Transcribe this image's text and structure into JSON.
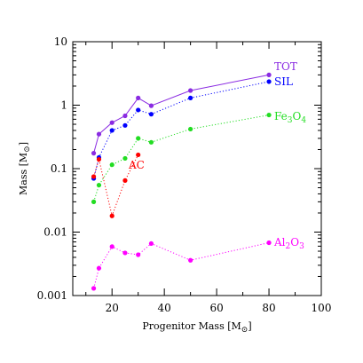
{
  "chart_data": {
    "type": "line",
    "title": "",
    "xlabel": "Progenitor Mass [M",
    "xlabel_unit_symbol": "⊙",
    "xlabel_close": "]",
    "ylabel": "Mass [M",
    "ylabel_unit_symbol": "⊙",
    "ylabel_close": "]",
    "xlim": [
      5,
      100
    ],
    "ylim": [
      0.001,
      10
    ],
    "yscale": "log",
    "grid": false,
    "x_ticks": [
      20,
      40,
      60,
      80,
      100
    ],
    "x_tick_labels": [
      "20",
      "40",
      "60",
      "80",
      "100"
    ],
    "y_ticks": [
      0.001,
      0.01,
      0.1,
      1,
      10
    ],
    "y_tick_labels": [
      "0.001",
      "0.01",
      "0.1",
      "1",
      "10"
    ],
    "series": [
      {
        "name": "TOT",
        "color": "#8a2be2",
        "line": "solid",
        "x": [
          13,
          15,
          20,
          25,
          30,
          35,
          50,
          80
        ],
        "y": [
          0.175,
          0.35,
          0.53,
          0.68,
          1.3,
          0.98,
          1.7,
          3.0
        ]
      },
      {
        "name": "SIL",
        "color": "#0000ff",
        "line": "dotted",
        "x": [
          13,
          15,
          20,
          25,
          30,
          35,
          50,
          80
        ],
        "y": [
          0.07,
          0.15,
          0.4,
          0.48,
          0.84,
          0.72,
          1.3,
          2.35
        ]
      },
      {
        "name": "Fe",
        "name_sub1": "3",
        "name_mid": "O",
        "name_sub2": "4",
        "color": "#22dd22",
        "line": "dotted",
        "x": [
          13,
          15,
          20,
          25,
          30,
          35,
          50,
          80
        ],
        "y": [
          0.03,
          0.055,
          0.115,
          0.145,
          0.3,
          0.26,
          0.42,
          0.7
        ]
      },
      {
        "name": "AC",
        "color": "#ff0000",
        "line": "dotted",
        "x": [
          13,
          15,
          20,
          25,
          30
        ],
        "y": [
          0.075,
          0.14,
          0.018,
          0.065,
          0.165
        ]
      },
      {
        "name": "Al",
        "name_sub1": "2",
        "name_mid": "O",
        "name_sub2": "3",
        "color": "#ff00ff",
        "line": "dotted",
        "x": [
          13,
          15,
          20,
          25,
          30,
          35,
          50,
          80
        ],
        "y": [
          0.0013,
          0.0027,
          0.0059,
          0.0047,
          0.0044,
          0.0066,
          0.0036,
          0.0068
        ]
      }
    ]
  }
}
